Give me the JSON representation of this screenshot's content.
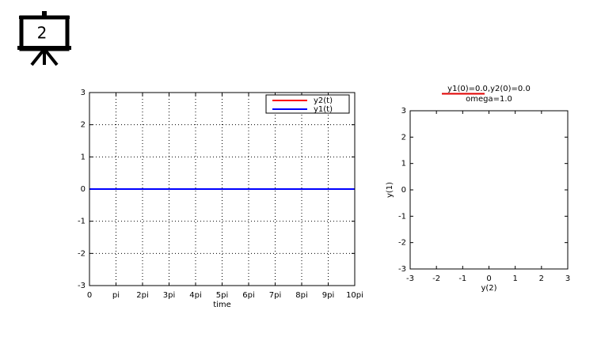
{
  "icon_label": "2",
  "chart_data": [
    {
      "type": "line",
      "xlabel": "time",
      "x": [
        0,
        31.41592653589793
      ],
      "series": [
        {
          "name": "y2(t)",
          "color": "#ff0000",
          "values": [
            0,
            0
          ]
        },
        {
          "name": "y1(t)",
          "color": "#0000ff",
          "values": [
            0,
            0
          ]
        }
      ],
      "xlim": [
        0,
        31.41592653589793
      ],
      "xticks": [
        0,
        {
          "value": 3.141592653589793,
          "label": "pi"
        },
        {
          "value": 6.283185307179586,
          "label": "2pi"
        },
        {
          "value": 9.42477796076938,
          "label": "3pi"
        },
        {
          "value": 12.566370614359172,
          "label": "4pi"
        },
        {
          "value": 15.707963267948966,
          "label": "5pi"
        },
        {
          "value": 18.84955592153876,
          "label": "6pi"
        },
        {
          "value": 21.991148575128552,
          "label": "7pi"
        },
        {
          "value": 25.132741228718345,
          "label": "8pi"
        },
        {
          "value": 28.274333882308138,
          "label": "9pi"
        },
        {
          "value": 31.41592653589793,
          "label": "10pi"
        }
      ],
      "ylim": [
        -3,
        3
      ],
      "yticks": [
        -3,
        -2,
        -1,
        0,
        1,
        2,
        3
      ],
      "grid": true,
      "legend": "upper-right"
    },
    {
      "type": "line",
      "title": "y1(0)=0.0,y2(0)=0.0",
      "subtitle": "omega=1.0",
      "xlabel": "y(2)",
      "ylabel": "y(1)",
      "xlim": [
        -3,
        3
      ],
      "xticks": [
        -3,
        -2,
        -1,
        0,
        1,
        2,
        3
      ],
      "ylim": [
        -3,
        3
      ],
      "yticks": [
        -3,
        -2,
        -1,
        0,
        1,
        2,
        3
      ],
      "grid": false
    }
  ]
}
